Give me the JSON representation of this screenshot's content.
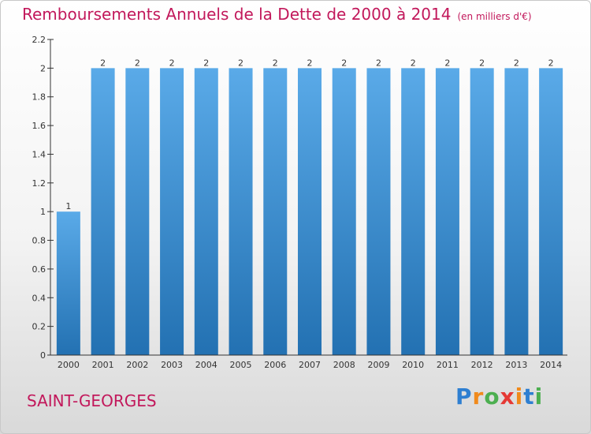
{
  "title": "Remboursements Annuels de la Dette de 2000 à 2014",
  "unit_label": "(en milliers d'€)",
  "town": "SAINT-GEORGES",
  "logo": {
    "text": "Proxiti",
    "letters": [
      {
        "ch": "P",
        "color": "#2e7fd1"
      },
      {
        "ch": "r",
        "color": "#f08a1c"
      },
      {
        "ch": "o",
        "color": "#4caf50"
      },
      {
        "ch": "x",
        "color": "#e53935"
      },
      {
        "ch": "i",
        "color": "#f08a1c"
      },
      {
        "ch": "t",
        "color": "#2e7fd1"
      },
      {
        "ch": "i",
        "color": "#4caf50"
      }
    ]
  },
  "colors": {
    "bar_top": "#5aaae8",
    "bar_bottom": "#2371b2",
    "axis": "#333333",
    "title": "#c2185b"
  },
  "chart_data": {
    "type": "bar",
    "categories": [
      "2000",
      "2001",
      "2002",
      "2003",
      "2004",
      "2005",
      "2006",
      "2007",
      "2008",
      "2009",
      "2010",
      "2011",
      "2012",
      "2013",
      "2014"
    ],
    "values": [
      1,
      2,
      2,
      2,
      2,
      2,
      2,
      2,
      2,
      2,
      2,
      2,
      2,
      2,
      2
    ],
    "value_labels": [
      "1",
      "2",
      "2",
      "2",
      "2",
      "2",
      "2",
      "2",
      "2",
      "2",
      "2",
      "2",
      "2",
      "2",
      "2"
    ],
    "ylim": [
      0,
      2.2
    ],
    "yticks": [
      0,
      0.2,
      0.4,
      0.6,
      0.8,
      1,
      1.2,
      1.4,
      1.6,
      1.8,
      2,
      2.2
    ],
    "ytick_labels": [
      "0",
      "0.2",
      "0.4",
      "0.6",
      "0.8",
      "1",
      "1.2",
      "1.4",
      "1.6",
      "1.8",
      "2",
      "2.2"
    ],
    "grid": false,
    "legend": "none"
  }
}
